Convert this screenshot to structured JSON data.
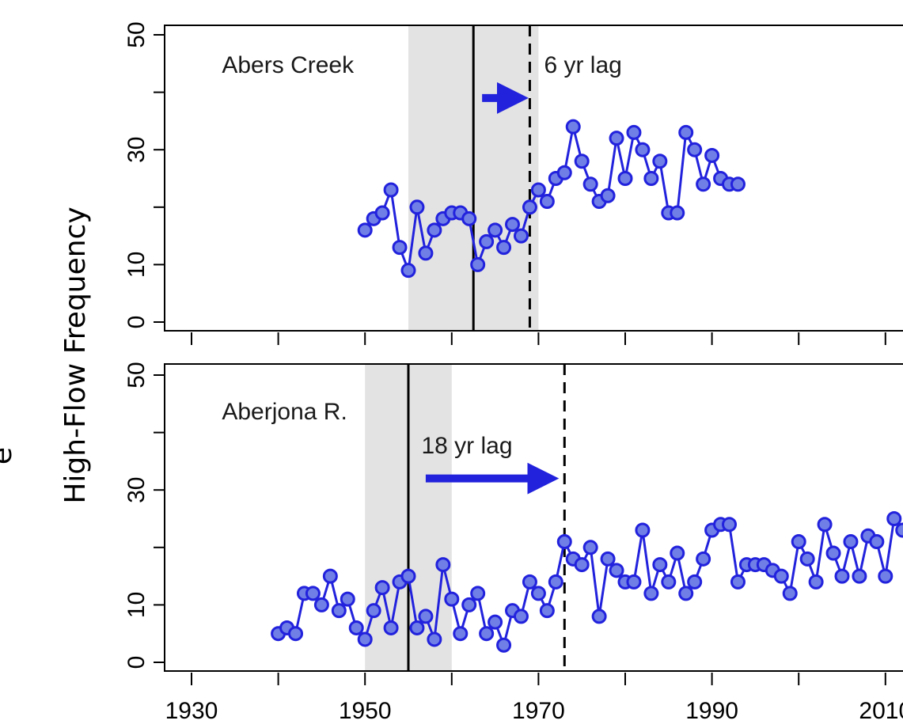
{
  "chart_data": {
    "type": "line",
    "ylabel": "High-Flow Frequency",
    "ylabel_fragment": "e",
    "series_color": "#2222dd",
    "marker_fill": "#6f7fe6",
    "shade_color": "#e3e3e3",
    "x_ticks": [
      1930,
      1940,
      1950,
      1960,
      1970,
      1980,
      1990,
      2000,
      2010
    ],
    "x_tick_labels": [
      "1930",
      "1950",
      "1970",
      "1990",
      "2010"
    ],
    "panels": [
      {
        "label": "Abers Creek",
        "lag_label": "6 yr lag",
        "ylim": [
          0,
          50
        ],
        "y_ticks": [
          0,
          10,
          30,
          50
        ],
        "y_minor_ticks": [
          20,
          40
        ],
        "shade": [
          1955,
          1970
        ],
        "solid_line": 1962.5,
        "dashed_line": 1969,
        "arrow": [
          1963.5,
          1968.5
        ],
        "arrow_y": 39,
        "x": [
          1950,
          1951,
          1952,
          1953,
          1954,
          1955,
          1956,
          1957,
          1958,
          1959,
          1960,
          1961,
          1962,
          1963,
          1964,
          1965,
          1966,
          1967,
          1968,
          1969,
          1970,
          1971,
          1972,
          1973,
          1974,
          1975,
          1976,
          1977,
          1978,
          1979,
          1980,
          1981,
          1982,
          1983,
          1984,
          1985,
          1986,
          1987,
          1988,
          1989,
          1990,
          1991,
          1992,
          1993
        ],
        "y": [
          16,
          18,
          19,
          23,
          13,
          9,
          20,
          12,
          16,
          18,
          19,
          19,
          18,
          10,
          14,
          16,
          13,
          17,
          15,
          20,
          23,
          21,
          25,
          26,
          34,
          28,
          24,
          21,
          22,
          32,
          25,
          33,
          30,
          25,
          28,
          19,
          19,
          33,
          30,
          24,
          29,
          25,
          24,
          24
        ]
      },
      {
        "label": "Aberjona R.",
        "lag_label": "18 yr lag",
        "ylim": [
          0,
          50
        ],
        "y_ticks": [
          0,
          10,
          30,
          50
        ],
        "y_minor_ticks": [
          20,
          40
        ],
        "shade": [
          1950,
          1960
        ],
        "solid_line": 1955,
        "dashed_line": 1973,
        "arrow": [
          1957,
          1972
        ],
        "arrow_y": 32,
        "x": [
          1940,
          1941,
          1942,
          1943,
          1944,
          1945,
          1946,
          1947,
          1948,
          1949,
          1950,
          1951,
          1952,
          1953,
          1954,
          1955,
          1956,
          1957,
          1958,
          1959,
          1960,
          1961,
          1962,
          1963,
          1964,
          1965,
          1966,
          1967,
          1968,
          1969,
          1970,
          1971,
          1972,
          1973,
          1974,
          1975,
          1976,
          1977,
          1978,
          1979,
          1980,
          1981,
          1982,
          1983,
          1984,
          1985,
          1986,
          1987,
          1988,
          1989,
          1990,
          1991,
          1992,
          1993,
          1994,
          1995,
          1996,
          1997,
          1998,
          1999,
          2000,
          2001,
          2002,
          2003,
          2004,
          2005,
          2006,
          2007,
          2008,
          2009,
          2010,
          2011,
          2012
        ],
        "y": [
          5,
          6,
          5,
          12,
          12,
          10,
          15,
          9,
          11,
          6,
          4,
          9,
          13,
          6,
          14,
          15,
          6,
          8,
          4,
          17,
          11,
          5,
          10,
          12,
          5,
          7,
          3,
          9,
          8,
          14,
          12,
          9,
          14,
          21,
          18,
          17,
          20,
          8,
          18,
          16,
          14,
          14,
          23,
          12,
          17,
          14,
          19,
          12,
          14,
          18,
          23,
          24,
          24,
          14,
          17,
          17,
          17,
          16,
          15,
          12,
          21,
          18,
          14,
          24,
          19,
          15,
          21,
          15,
          22,
          21,
          15,
          25,
          23
        ]
      }
    ]
  }
}
